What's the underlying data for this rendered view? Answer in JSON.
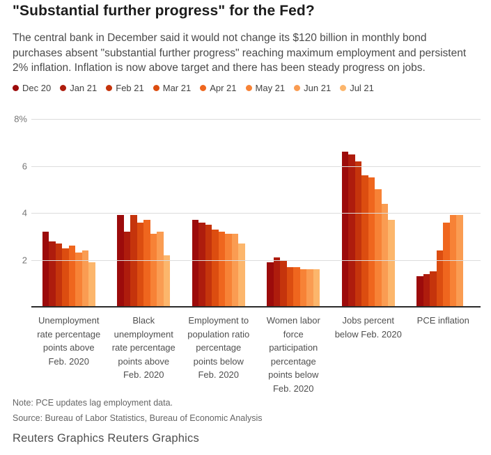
{
  "title": "\"Substantial further progress\" for the Fed?",
  "description": "The central bank in December said it would not change its $120 billion in monthly bond purchases absent \"substantial further progress\" reaching maximum employment and persistent 2% inflation. Inflation is now above target and there has been steady progress on jobs.",
  "chart_data": {
    "type": "bar",
    "grid": true,
    "legend_position": "top",
    "ylim": [
      0,
      8
    ],
    "yticks": [
      {
        "value": 8,
        "label": "8%"
      },
      {
        "value": 6,
        "label": "6"
      },
      {
        "value": 4,
        "label": "4"
      },
      {
        "value": 2,
        "label": "2"
      }
    ],
    "categories": [
      "Unemployment rate percentage points above Feb. 2020",
      "Black unemployment rate percentage points above Feb. 2020",
      "Employment to population ratio percentage points below Feb. 2020",
      "Women labor force participation percentage points below Feb. 2020",
      "Jobs percent below Feb. 2020",
      "PCE inflation"
    ],
    "series": [
      {
        "name": "Dec 20",
        "color": "#9c0b0b",
        "values": [
          3.2,
          3.9,
          3.7,
          1.9,
          6.6,
          1.3
        ]
      },
      {
        "name": "Jan 21",
        "color": "#ae1c0d",
        "values": [
          2.8,
          3.2,
          3.6,
          2.1,
          6.5,
          1.4
        ]
      },
      {
        "name": "Feb 21",
        "color": "#c5340c",
        "values": [
          2.7,
          3.9,
          3.5,
          2.0,
          6.2,
          1.5
        ]
      },
      {
        "name": "Mar 21",
        "color": "#dc4d10",
        "values": [
          2.5,
          3.6,
          3.3,
          1.7,
          5.6,
          2.4
        ]
      },
      {
        "name": "Apr 21",
        "color": "#ef661e",
        "values": [
          2.6,
          3.7,
          3.2,
          1.7,
          5.5,
          3.6
        ]
      },
      {
        "name": "May 21",
        "color": "#f78236",
        "values": [
          2.3,
          3.1,
          3.1,
          1.6,
          5.0,
          3.9
        ]
      },
      {
        "name": "Jun 21",
        "color": "#fa9c52",
        "values": [
          2.4,
          3.2,
          3.1,
          1.6,
          4.4,
          3.9
        ]
      },
      {
        "name": "Jul 21",
        "color": "#fcb66c",
        "values": [
          1.9,
          2.2,
          2.7,
          1.6,
          3.7,
          null
        ]
      }
    ]
  },
  "footer": {
    "note": "Note: PCE updates lag employment data.",
    "source": "Source: Bureau of Labor Statistics, Bureau of Economic Analysis",
    "attribution": "Reuters Graphics Reuters Graphics"
  }
}
